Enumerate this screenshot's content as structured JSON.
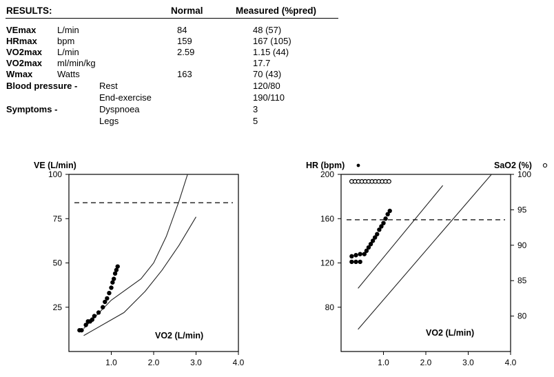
{
  "results": {
    "header": {
      "title": "RESULTS:",
      "normal": "Normal",
      "measured": "Measured (%pred)"
    },
    "rows": [
      {
        "name": "VEmax",
        "unit": "L/min",
        "normal": "84",
        "measured": "48 (57)"
      },
      {
        "name": "HRmax",
        "unit": "bpm",
        "normal": "159",
        "measured": "167 (105)"
      },
      {
        "name": "VO2max",
        "unit": "L/min",
        "normal": "2.59",
        "measured": "1.15 (44)"
      },
      {
        "name": "VO2max",
        "unit": "ml/min/kg",
        "normal": "",
        "measured": "17.7"
      },
      {
        "name": "Wmax",
        "unit": "Watts",
        "normal": "163",
        "measured": "70 (43)"
      }
    ],
    "bp": {
      "label": "Blood pressure -",
      "rest_label": "Rest",
      "rest_value": "120/80",
      "end_label": "End-exercise",
      "end_value": "190/110"
    },
    "symptoms": {
      "label": "Symptoms -",
      "dysp_label": "Dyspnoea",
      "dysp_value": "3",
      "legs_label": "Legs",
      "legs_value": "5"
    }
  },
  "chart_data": [
    {
      "type": "scatter",
      "ylabel": "VE (L/min)",
      "xlabel": "VO2 (L/min)",
      "xlim": [
        0,
        4.0
      ],
      "ylim": [
        0,
        100
      ],
      "xticks": [
        "1.0",
        "2.0",
        "3.0",
        "4.0"
      ],
      "yticks": [
        "25",
        "50",
        "75",
        "100"
      ],
      "series": [
        {
          "values": [
            [
              0.25,
              12
            ],
            [
              0.3,
              12
            ],
            [
              0.4,
              15
            ],
            [
              0.45,
              17
            ],
            [
              0.5,
              17
            ],
            [
              0.55,
              18
            ],
            [
              0.6,
              20
            ],
            [
              0.7,
              22
            ],
            [
              0.8,
              25
            ],
            [
              0.85,
              28
            ],
            [
              0.9,
              30
            ],
            [
              0.95,
              33
            ],
            [
              1.0,
              36
            ],
            [
              1.03,
              39
            ],
            [
              1.06,
              41
            ],
            [
              1.09,
              44
            ],
            [
              1.12,
              46
            ],
            [
              1.15,
              48
            ]
          ]
        }
      ],
      "reference_lines": [
        [
          [
            0.35,
            13
          ],
          [
            1.0,
            29
          ],
          [
            1.7,
            41
          ],
          [
            2.0,
            50
          ],
          [
            2.3,
            65
          ],
          [
            2.6,
            85
          ],
          [
            2.8,
            100
          ]
        ],
        [
          [
            0.35,
            9
          ],
          [
            1.3,
            22
          ],
          [
            1.8,
            34
          ],
          [
            2.2,
            46
          ],
          [
            2.6,
            60
          ],
          [
            3.0,
            76
          ]
        ]
      ],
      "dashed_max": 84
    },
    {
      "type": "scatter",
      "ylabel": "HR (bpm)",
      "y2label": "SaO2 (%)",
      "xlabel": "VO2 (L/min)",
      "xlim": [
        0,
        4.0
      ],
      "ylim": [
        40,
        200
      ],
      "y2lim": [
        75,
        100
      ],
      "xticks": [
        "1.0",
        "2.0",
        "3.0",
        "4.0"
      ],
      "yticks": [
        "80",
        "120",
        "160",
        "200"
      ],
      "y2ticks": [
        "80",
        "85",
        "90",
        "95",
        "100"
      ],
      "series": [
        {
          "name": "HR",
          "values": [
            [
              0.25,
              121
            ],
            [
              0.35,
              121
            ],
            [
              0.45,
              121
            ],
            [
              0.25,
              126
            ],
            [
              0.35,
              127
            ],
            [
              0.45,
              128
            ],
            [
              0.55,
              128
            ],
            [
              0.6,
              131
            ],
            [
              0.65,
              134
            ],
            [
              0.7,
              137
            ],
            [
              0.75,
              140
            ],
            [
              0.8,
              143
            ],
            [
              0.85,
              146
            ],
            [
              0.9,
              150
            ],
            [
              0.95,
              153
            ],
            [
              1.0,
              156
            ],
            [
              1.05,
              160
            ],
            [
              1.1,
              164
            ],
            [
              1.15,
              167
            ]
          ]
        },
        {
          "name": "SaO2",
          "values": [
            [
              0.25,
              99
            ],
            [
              0.33,
              99
            ],
            [
              0.41,
              99
            ],
            [
              0.49,
              99
            ],
            [
              0.57,
              99
            ],
            [
              0.65,
              99
            ],
            [
              0.73,
              99
            ],
            [
              0.81,
              99
            ],
            [
              0.89,
              99
            ],
            [
              0.97,
              99
            ],
            [
              1.05,
              99
            ],
            [
              1.13,
              99
            ]
          ]
        }
      ],
      "reference_lines": [
        [
          [
            0.4,
            97
          ],
          [
            2.4,
            190
          ]
        ],
        [
          [
            0.4,
            60
          ],
          [
            3.1,
            180
          ],
          [
            4.0,
            220
          ]
        ]
      ],
      "dashed_max": 159
    }
  ]
}
